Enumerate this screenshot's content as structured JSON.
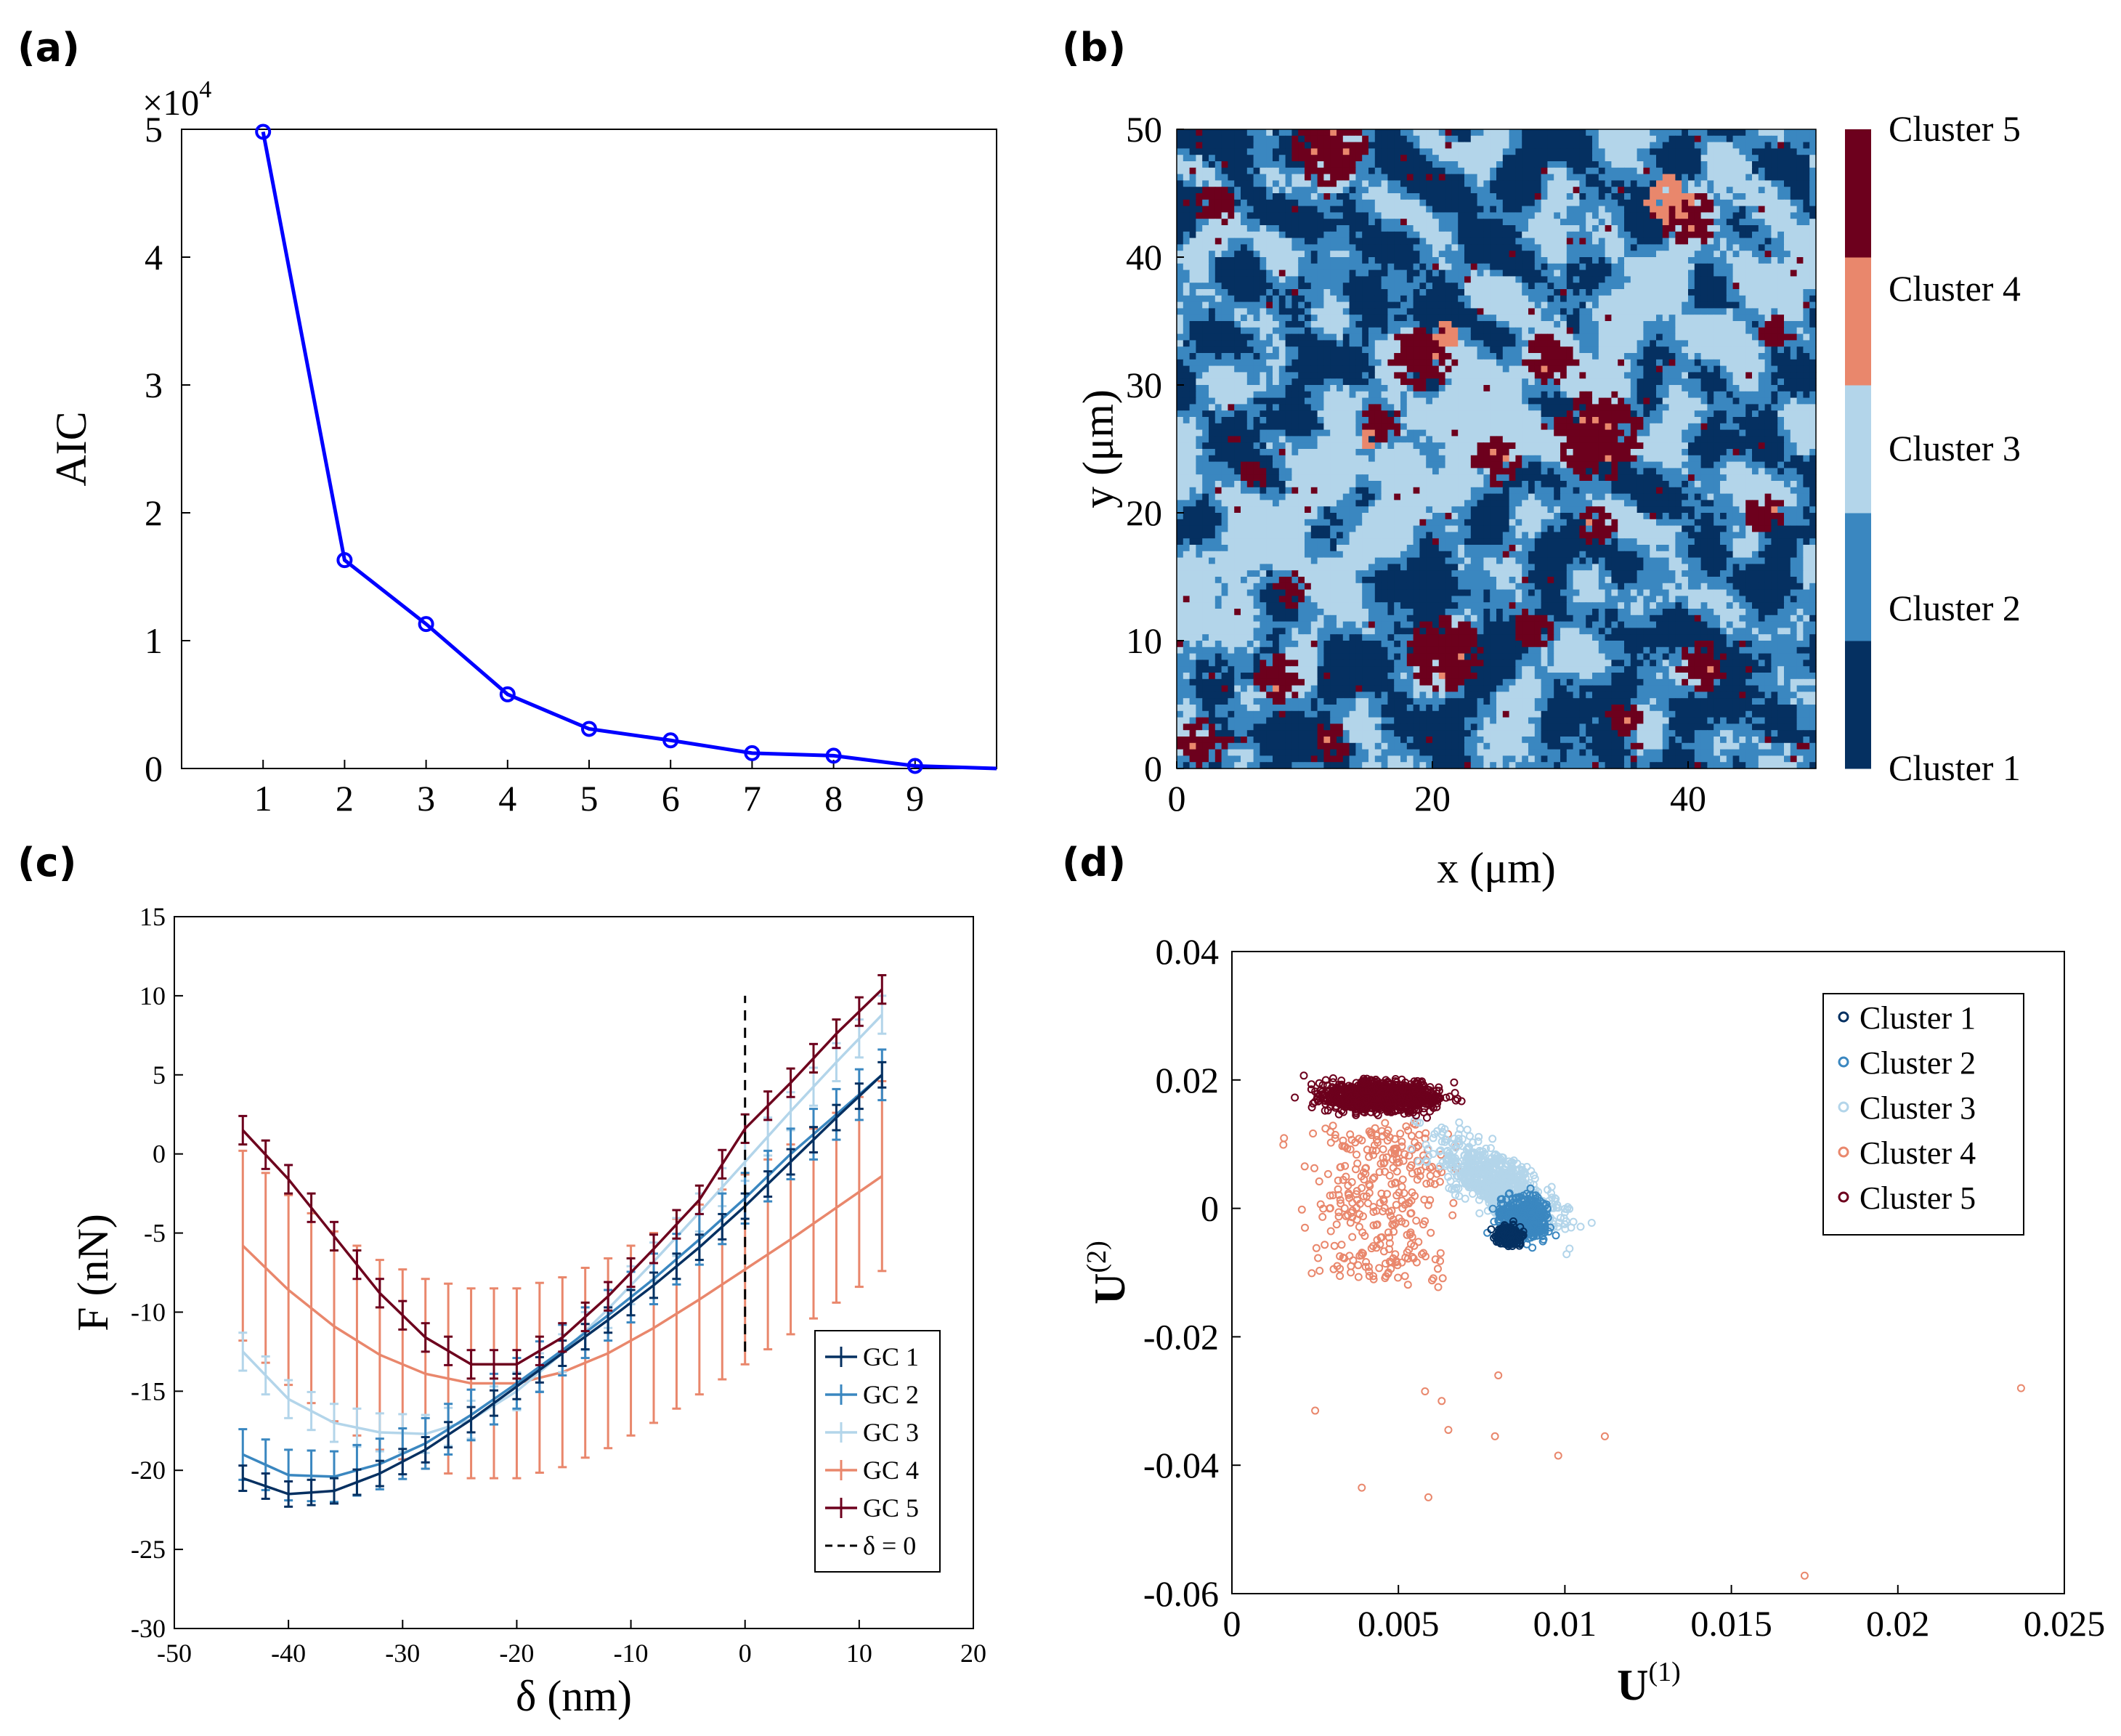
{
  "panel_labels": [
    "(a)",
    "(b)",
    "(c)",
    "(d)"
  ],
  "colors": {
    "cluster1": "#053061",
    "cluster2": "#3a87c0",
    "cluster3": "#b3d5ea",
    "cluster4": "#e9876c",
    "cluster5": "#6d001d",
    "aic_line": "#0000ff"
  },
  "chart_data": [
    {
      "panel": "(a)",
      "type": "line",
      "title": "",
      "xlabel": "",
      "ylabel": "AIC",
      "y_exponent_label": "×10",
      "y_exponent": "4",
      "x": [
        1,
        2,
        3,
        4,
        5,
        6,
        7,
        8,
        9,
        10
      ],
      "values": [
        4.98,
        1.63,
        1.13,
        0.58,
        0.31,
        0.22,
        0.12,
        0.1,
        0.02,
        0.0
      ],
      "xlim": [
        0,
        10
      ],
      "ylim": [
        0,
        5
      ],
      "xticks": [
        "1",
        "2",
        "3",
        "4",
        "5",
        "6",
        "7",
        "8",
        "9"
      ],
      "yticks": [
        "0",
        "1",
        "2",
        "3",
        "4",
        "5"
      ]
    },
    {
      "panel": "(b)",
      "type": "heatmap",
      "xlabel": "x (μm)",
      "ylabel": "y (μm)",
      "xlim": [
        0,
        50
      ],
      "ylim": [
        0,
        50
      ],
      "xticks": [
        "0",
        "20",
        "40"
      ],
      "yticks": [
        "0",
        "10",
        "20",
        "30",
        "40",
        "50"
      ],
      "grid_size": 100,
      "colorbar_labels": [
        "Cluster 1",
        "Cluster 2",
        "Cluster 3",
        "Cluster 4",
        "Cluster 5"
      ],
      "blobs": [
        {
          "cluster": 5,
          "cx": 33,
          "cy": 26,
          "r": 3.5
        },
        {
          "cluster": 5,
          "cx": 21,
          "cy": 9,
          "r": 3.0
        },
        {
          "cluster": 5,
          "cx": 12,
          "cy": 48.5,
          "r": 3.0
        },
        {
          "cluster": 5,
          "cx": 19,
          "cy": 32,
          "r": 2.5
        },
        {
          "cluster": 5,
          "cx": 40,
          "cy": 43,
          "r": 2.2
        },
        {
          "cluster": 5,
          "cx": 29,
          "cy": 32,
          "r": 2.0
        },
        {
          "cluster": 5,
          "cx": 25,
          "cy": 24,
          "r": 1.8
        },
        {
          "cluster": 5,
          "cx": 16,
          "cy": 27,
          "r": 1.6
        },
        {
          "cluster": 5,
          "cx": 2,
          "cy": 2,
          "r": 1.8
        },
        {
          "cluster": 5,
          "cx": 41,
          "cy": 8,
          "r": 2.0
        },
        {
          "cluster": 5,
          "cx": 8,
          "cy": 7,
          "r": 1.8
        },
        {
          "cluster": 5,
          "cx": 33,
          "cy": 19,
          "r": 1.6
        },
        {
          "cluster": 5,
          "cx": 3,
          "cy": 44,
          "r": 1.5
        },
        {
          "cluster": 5,
          "cx": 46,
          "cy": 20,
          "r": 1.5
        },
        {
          "cluster": 5,
          "cx": 28,
          "cy": 11,
          "r": 1.6
        },
        {
          "cluster": 5,
          "cx": 12,
          "cy": 2,
          "r": 1.5
        },
        {
          "cluster": 5,
          "cx": 47,
          "cy": 34,
          "r": 1.3
        },
        {
          "cluster": 5,
          "cx": 9,
          "cy": 14,
          "r": 1.3
        },
        {
          "cluster": 5,
          "cx": 35,
          "cy": 4,
          "r": 1.3
        },
        {
          "cluster": 5,
          "cx": 6,
          "cy": 23,
          "r": 1.2
        },
        {
          "cluster": 4,
          "cx": 38.5,
          "cy": 44.5,
          "r": 1.8
        },
        {
          "cluster": 4,
          "cx": 21,
          "cy": 34,
          "r": 1.1
        },
        {
          "cluster": 4,
          "cx": 15,
          "cy": 26,
          "r": 0.8
        }
      ]
    },
    {
      "panel": "(c)",
      "type": "line",
      "xlabel": "δ (nm)",
      "ylabel": "F (nN)",
      "xlim": [
        -50,
        20
      ],
      "ylim": [
        -30,
        15
      ],
      "xticks": [
        "-50",
        "-40",
        "-30",
        "-20",
        "-10",
        "0",
        "10",
        "20"
      ],
      "yticks": [
        "-30",
        "-25",
        "-20",
        "-15",
        "-10",
        "-5",
        "0",
        "5",
        "10",
        "15"
      ],
      "x": [
        -44,
        -40,
        -36,
        -32,
        -28,
        -24,
        -20,
        -16,
        -12,
        -8,
        -4,
        0,
        4,
        8,
        12
      ],
      "series": [
        {
          "name": "GC 1",
          "values": [
            -20.5,
            -21.5,
            -21.3,
            -20.2,
            -18.7,
            -16.8,
            -14.7,
            -12.6,
            -10.5,
            -8.3,
            -5.9,
            -3.3,
            -0.5,
            2.3,
            5.0
          ],
          "err": 0.8
        },
        {
          "name": "GC 2",
          "values": [
            -19.0,
            -20.3,
            -20.4,
            -19.6,
            -18.3,
            -16.5,
            -14.5,
            -12.4,
            -10.2,
            -7.9,
            -5.4,
            -2.8,
            0.0,
            2.5,
            5.0
          ],
          "err": 1.6
        },
        {
          "name": "GC 3",
          "values": [
            -12.5,
            -15.5,
            -17.0,
            -17.6,
            -17.7,
            -16.8,
            -15.0,
            -12.6,
            -9.8,
            -6.8,
            -3.7,
            -0.5,
            2.7,
            5.8,
            8.8
          ],
          "err": 1.2
        },
        {
          "name": "GC 4",
          "values": [
            -5.8,
            -8.6,
            -10.9,
            -12.7,
            -13.9,
            -14.5,
            -14.5,
            -13.8,
            -12.6,
            -11.0,
            -9.2,
            -7.3,
            -5.4,
            -3.4,
            -1.4
          ],
          "err": 6.0
        },
        {
          "name": "GC 5",
          "values": [
            1.5,
            -1.6,
            -5.2,
            -8.8,
            -11.6,
            -13.3,
            -13.3,
            -11.6,
            -9.0,
            -6.0,
            -2.9,
            1.6,
            4.5,
            7.6,
            10.4
          ],
          "err": 0.9
        }
      ],
      "reference_line": {
        "label": "δ = 0",
        "x": 0,
        "y_range": [
          -12.5,
          10
        ]
      }
    },
    {
      "panel": "(d)",
      "type": "scatter",
      "xlabel": "U(1)",
      "xlabel_base": "U",
      "xlabel_sup": "(1)",
      "ylabel": "U(2)",
      "ylabel_base": "U",
      "ylabel_sup": "(2)",
      "xlim": [
        0,
        0.025
      ],
      "ylim": [
        -0.06,
        0.04
      ],
      "xticks": [
        "0",
        "0.005",
        "0.01",
        "0.015",
        "0.02",
        "0.025"
      ],
      "yticks": [
        "-0.06",
        "-0.04",
        "-0.02",
        "0",
        "0.02",
        "0.04"
      ],
      "legend": [
        "Cluster 1",
        "Cluster 2",
        "Cluster 3",
        "Cluster 4",
        "Cluster 5"
      ],
      "clouds": [
        {
          "cluster": 4,
          "cx": 0.0044,
          "cy": -0.002,
          "sx": 0.0018,
          "sy": 0.011,
          "n": 320
        },
        {
          "cluster": 3,
          "cx": 0.008,
          "cy": 0.004,
          "sx": 0.0014,
          "sy": 0.008,
          "n": 700
        },
        {
          "cluster": 5,
          "cx": 0.0045,
          "cy": 0.0175,
          "sx": 0.0015,
          "sy": 0.0032,
          "n": 900
        },
        {
          "cluster": 2,
          "cx": 0.0088,
          "cy": -0.0015,
          "sx": 0.0006,
          "sy": 0.0045,
          "n": 500
        },
        {
          "cluster": 1,
          "cx": 0.0083,
          "cy": -0.0042,
          "sx": 0.0003,
          "sy": 0.0018,
          "n": 300
        }
      ],
      "outliers": [
        [
          0.0237,
          -0.028
        ],
        [
          0.0172,
          -0.0572
        ],
        [
          0.0112,
          -0.0355
        ],
        [
          0.0098,
          -0.0385
        ],
        [
          0.0065,
          -0.0345
        ],
        [
          0.0059,
          -0.045
        ],
        [
          0.0039,
          -0.0435
        ],
        [
          0.0058,
          -0.0285
        ],
        [
          0.0079,
          -0.0355
        ],
        [
          0.0025,
          -0.0315
        ],
        [
          0.0063,
          -0.03
        ],
        [
          0.008,
          -0.026
        ]
      ]
    }
  ]
}
